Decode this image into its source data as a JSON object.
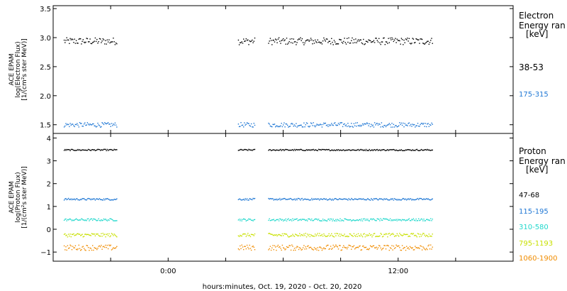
{
  "xlabel": "hours:minutes, Oct. 19, 2020 - Oct. 20, 2020",
  "colors": {
    "black": "#000000",
    "blue": "#1f77d4",
    "cyan": "#22d8cc",
    "yellow": "#c8e000",
    "orange": "#f08c00"
  },
  "chart_data": [
    {
      "type": "scatter",
      "panel": "electron",
      "ylabel_lines": [
        "ACE EPAM",
        "log(Electron Flux)",
        "[1/(cm²s ster MeV)]"
      ],
      "ylim": [
        1.35,
        3.55
      ],
      "yticks": [
        1.5,
        2.0,
        2.5,
        3.0,
        3.5
      ],
      "ytick_labels": [
        "1.5",
        "2.0",
        "2.5",
        "3.0",
        "3.5"
      ],
      "xlim_hours": [
        -6,
        18
      ],
      "xticks_hours": [
        -3,
        0,
        3,
        6,
        9,
        12,
        15,
        18
      ],
      "xtick_labels": [
        "",
        "0:00",
        "",
        "",
        "",
        "12:00",
        "",
        ""
      ],
      "gap_hours": [
        [
          -2.7,
          3.6
        ],
        [
          4.5,
          5.2
        ],
        [
          13.8,
          18
        ]
      ],
      "legend_title_lines": [
        "Electron",
        "Energy ran",
        "[keV]"
      ],
      "series": [
        {
          "name": "38-53",
          "color": "black",
          "value": 2.94,
          "spread": 0.06
        },
        {
          "name": "175-315",
          "color": "blue",
          "value": 1.5,
          "spread": 0.04
        }
      ]
    },
    {
      "type": "scatter",
      "panel": "proton",
      "ylabel_lines": [
        "ACE EPAM",
        "log(Proton Flux)",
        "[1/(cm²s ster MeV)]"
      ],
      "ylim": [
        -1.4,
        4.2
      ],
      "yticks": [
        -1,
        0,
        1,
        2,
        3,
        4
      ],
      "ytick_labels": [
        "−1",
        "0",
        "1",
        "2",
        "3",
        "4"
      ],
      "xlim_hours": [
        -6,
        18
      ],
      "xticks_hours": [
        -3,
        0,
        3,
        6,
        9,
        12,
        15,
        18
      ],
      "xtick_labels": [
        "",
        "0:00",
        "",
        "",
        "",
        "12:00",
        "",
        ""
      ],
      "gap_hours": [
        [
          -2.7,
          3.6
        ],
        [
          4.5,
          5.2
        ],
        [
          13.8,
          18
        ]
      ],
      "legend_title_lines": [
        "Proton",
        "Energy ran",
        "[keV]"
      ],
      "series": [
        {
          "name": "47-68",
          "color": "black",
          "value": 3.48,
          "spread": 0.03
        },
        {
          "name": "115-195",
          "color": "blue",
          "value": 1.32,
          "spread": 0.04
        },
        {
          "name": "310-580",
          "color": "cyan",
          "value": 0.42,
          "spread": 0.05
        },
        {
          "name": "795-1193",
          "color": "yellow",
          "value": -0.25,
          "spread": 0.08
        },
        {
          "name": "1060-1900",
          "color": "orange",
          "value": -0.8,
          "spread": 0.12
        }
      ]
    }
  ]
}
